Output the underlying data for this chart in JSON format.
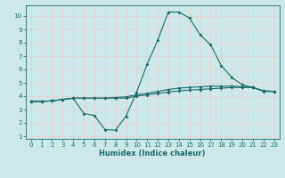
{
  "title": "",
  "xlabel": "Humidex (Indice chaleur)",
  "ylabel": "",
  "bg_color": "#cce8e8",
  "line_color": "#1a6b6b",
  "grid_color": "#e8d0d0",
  "xlim": [
    -0.5,
    23.5
  ],
  "ylim": [
    0.8,
    10.8
  ],
  "yticks": [
    1,
    2,
    3,
    4,
    5,
    6,
    7,
    8,
    9,
    10
  ],
  "xticks": [
    0,
    1,
    2,
    3,
    4,
    5,
    6,
    7,
    8,
    9,
    10,
    11,
    12,
    13,
    14,
    15,
    16,
    17,
    18,
    19,
    20,
    21,
    22,
    23
  ],
  "line_max": [
    [
      0,
      3.6
    ],
    [
      1,
      3.6
    ],
    [
      2,
      3.65
    ],
    [
      3,
      3.75
    ],
    [
      4,
      3.85
    ],
    [
      5,
      2.7
    ],
    [
      6,
      2.55
    ],
    [
      7,
      1.5
    ],
    [
      8,
      1.45
    ],
    [
      9,
      2.5
    ],
    [
      10,
      4.3
    ],
    [
      11,
      6.4
    ],
    [
      12,
      8.2
    ],
    [
      13,
      10.3
    ],
    [
      14,
      10.3
    ],
    [
      15,
      9.85
    ],
    [
      16,
      8.6
    ],
    [
      17,
      7.85
    ],
    [
      18,
      6.3
    ],
    [
      19,
      5.4
    ],
    [
      20,
      4.85
    ],
    [
      21,
      4.65
    ],
    [
      22,
      4.35
    ],
    [
      23,
      4.35
    ]
  ],
  "line_mid1": [
    [
      0,
      3.6
    ],
    [
      1,
      3.6
    ],
    [
      2,
      3.65
    ],
    [
      3,
      3.75
    ],
    [
      4,
      3.85
    ],
    [
      5,
      3.85
    ],
    [
      6,
      3.85
    ],
    [
      7,
      3.85
    ],
    [
      8,
      3.85
    ],
    [
      9,
      3.85
    ],
    [
      10,
      4.0
    ],
    [
      11,
      4.1
    ],
    [
      12,
      4.2
    ],
    [
      13,
      4.3
    ],
    [
      14,
      4.4
    ],
    [
      15,
      4.45
    ],
    [
      16,
      4.5
    ],
    [
      17,
      4.55
    ],
    [
      18,
      4.6
    ],
    [
      19,
      4.65
    ],
    [
      20,
      4.65
    ],
    [
      21,
      4.65
    ],
    [
      22,
      4.4
    ],
    [
      23,
      4.35
    ]
  ],
  "line_mid2": [
    [
      0,
      3.6
    ],
    [
      1,
      3.6
    ],
    [
      2,
      3.65
    ],
    [
      3,
      3.75
    ],
    [
      4,
      3.85
    ],
    [
      5,
      3.85
    ],
    [
      6,
      3.85
    ],
    [
      7,
      3.85
    ],
    [
      8,
      3.9
    ],
    [
      9,
      3.95
    ],
    [
      10,
      4.1
    ],
    [
      11,
      4.2
    ],
    [
      12,
      4.35
    ],
    [
      13,
      4.5
    ],
    [
      14,
      4.6
    ],
    [
      15,
      4.65
    ],
    [
      16,
      4.7
    ],
    [
      17,
      4.75
    ],
    [
      18,
      4.75
    ],
    [
      19,
      4.75
    ],
    [
      20,
      4.7
    ],
    [
      21,
      4.65
    ],
    [
      22,
      4.4
    ],
    [
      23,
      4.35
    ]
  ],
  "tick_fontsize": 5.0,
  "xlabel_fontsize": 6.0,
  "marker_size": 2.0,
  "linewidth": 0.8
}
